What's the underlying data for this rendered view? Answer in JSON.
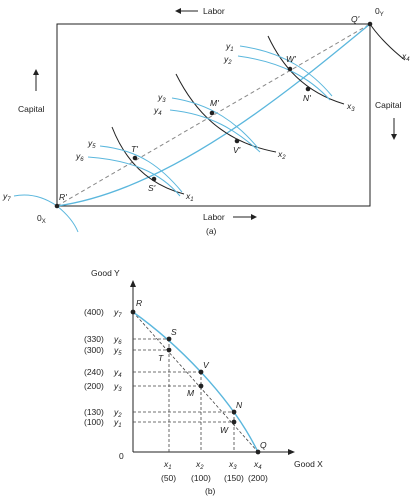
{
  "panel_a": {
    "caption": "(a)",
    "top_axis_label": "Labor",
    "bottom_axis_label": "Labor",
    "left_axis_label": "Capital",
    "right_axis_label": "Capital",
    "origin_x": {
      "base": "0",
      "sub": "X"
    },
    "origin_y": {
      "base": "0",
      "sub": "Y"
    },
    "corner_points": {
      "bottom_left": "R'",
      "top_right": "Q'"
    },
    "points": [
      "T'",
      "S'",
      "M'",
      "V'",
      "W'",
      "N'"
    ],
    "x_curve_labels": [
      {
        "base": "x",
        "sub": "1"
      },
      {
        "base": "x",
        "sub": "2"
      },
      {
        "base": "x",
        "sub": "3"
      },
      {
        "base": "x",
        "sub": "4"
      }
    ],
    "y_curve_labels": [
      {
        "base": "y",
        "sub": "1"
      },
      {
        "base": "y",
        "sub": "2"
      },
      {
        "base": "y",
        "sub": "3"
      },
      {
        "base": "y",
        "sub": "4"
      },
      {
        "base": "y",
        "sub": "5"
      },
      {
        "base": "y",
        "sub": "6"
      },
      {
        "base": "y",
        "sub": "7"
      }
    ],
    "colors": {
      "contract_curve": "#5bb7dd",
      "isoquant_x": "#222222",
      "isoquant_y": "#5bb7dd"
    }
  },
  "panel_b": {
    "caption": "(b)",
    "y_axis_title": "Good Y",
    "x_axis_title": "Good X",
    "origin_label": "0",
    "y_ticks": [
      {
        "value": "(400)",
        "label": "y",
        "sub": "7"
      },
      {
        "value": "(330)",
        "label": "y",
        "sub": "6"
      },
      {
        "value": "(300)",
        "label": "y",
        "sub": "5"
      },
      {
        "value": "(240)",
        "label": "y",
        "sub": "4"
      },
      {
        "value": "(200)",
        "label": "y",
        "sub": "3"
      },
      {
        "value": "(130)",
        "label": "y",
        "sub": "2"
      },
      {
        "value": "(100)",
        "label": "y",
        "sub": "1"
      }
    ],
    "x_ticks": [
      {
        "label": "x",
        "sub": "1",
        "value": "(50)"
      },
      {
        "label": "x",
        "sub": "2",
        "value": "(100)"
      },
      {
        "label": "x",
        "sub": "3",
        "value": "(150)"
      },
      {
        "label": "x",
        "sub": "4",
        "value": "(200)"
      }
    ],
    "points": [
      "R",
      "S",
      "T",
      "V",
      "M",
      "N",
      "W",
      "Q"
    ],
    "frontier_color": "#5bb7dd"
  }
}
